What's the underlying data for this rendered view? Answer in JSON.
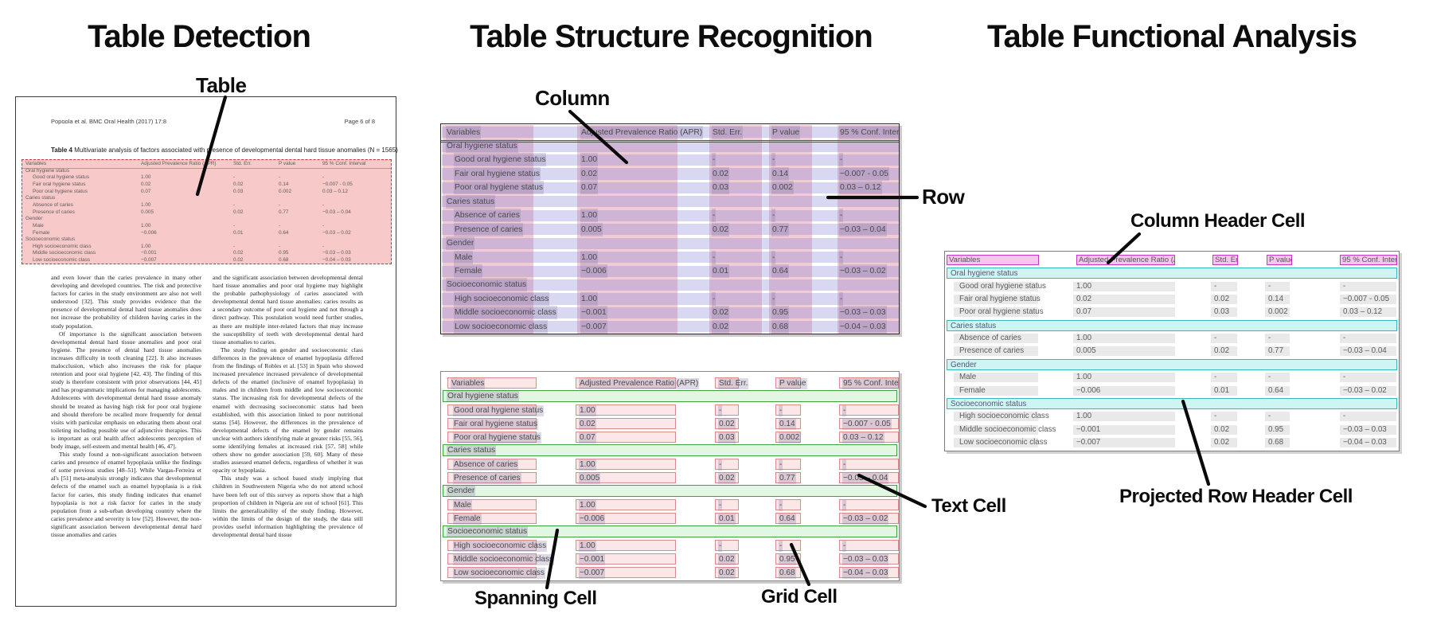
{
  "panels": {
    "detection": {
      "title": "Table Detection",
      "callout_table": "Table"
    },
    "structure": {
      "title": "Table Structure Recognition",
      "callout_column": "Column",
      "callout_row": "Row",
      "callout_spanning": "Spanning Cell",
      "callout_grid": "Grid Cell",
      "callout_text": "Text Cell"
    },
    "functional": {
      "title": "Table Functional Analysis",
      "callout_column_header": "Column Header Cell",
      "callout_projected": "Projected Row Header Cell"
    }
  },
  "document": {
    "header_left": "Popoola et al. BMC Oral Health  (2017) 17:8",
    "header_right": "Page 6 of 8",
    "caption_label": "Table 4",
    "caption_text": " Multivariate analysis of factors associated with presence of developmental dental hard tissue anomalies (N = 1565)",
    "body_left": [
      "and even lower than the caries prevalence in many other developing and developed countries. The risk and protective factors for caries in the study environment are also not well understood [32]. This study provides evidence that the presence of developmental dental hard tissue anomalies does not increase the probability of children having caries in the study population.",
      "Of importance is the significant association between developmental dental hard tissue anomalies and poor oral hygiene. The presence of dental hard tissue anomalies increases difficulty in tooth cleaning [22]. It also increases malocclusion, which also increases the risk for plaque retention and poor oral hygiene [42, 43]. The finding of this study is therefore consistent with prior observations [44, 45] and has programmatic implications for managing adolescents. Adolescents with developmental dental hard tissue anomaly should be treated as having high risk for poor oral hygiene and should therefore be recalled more frequently for dental visits with particular emphasis on educating them about oral toileting including possible use of adjunctive therapies. This is important as oral health affect adolescents perception of body image, self-esteem and mental health [46, 47].",
      "This study found a non-significant association between caries and presence of enamel hypoplasia unlike the findings of some previous studies [48–51]. While Vargas-Ferreira et al's [51] meta-analysis strongly indicates that developmental defects of the enamel such as enamel hypoplasia is a risk factor for caries, this study finding indicates that enamel hypoplasia is not a risk factor for caries in the study population from a sub-urban developing country where the caries prevalence and severity is low [52]. However, the non-significant association between developmental dental hard tissue anomalies and caries"
    ],
    "body_right": [
      "and the significant association between developmental dental hard tissue anomalies and poor oral hygiene may highlight the probable pathophysiology of caries associated with developmental dental hard tissue anomalies: caries results as a secondary outcome of poor oral hygiene and not through a direct pathway. This postulation would need further studies, as there are multiple inter-related factors that may increase the susceptibility of teeth with developmental dental hard tissue anomalies to caries.",
      "The study finding on gender and socioeconomic class differences in the prevalence of enamel hypoplasia differed from the findings of Robles et al. [53] in Spain who showed increased prevalence increased prevalence of developmental defects of the enamel (inclusive of enamel hypoplasia) in males and in children from middle and low socioeconomic status. The increasing risk for developmental defects of the enamel with decreasing socioeconomic status had been established, with this association linked to poor nutritional status [54]. However, the differences in the prevalence of developmental defects of the enamel by gender remains unclear with authors identifying male at greater risks [55, 56], some identifying females at increased risk [57, 58] while others show no gender association [59, 60]. Many of these studies assessed enamel defects, regardless of whether it was opacity or hypoplasia.",
      "This study was a school based study implying that children in Southwestern Nigeria who do not attend school have been left out of this survey as reports show that a high proportion of children in Nigeria are out of school [61]. This limits the generalizability of the study finding. However, within the limits of the design of the study, the data still provides useful information highlighting the prevalence of developmental dental hard tissue"
    ]
  },
  "table": {
    "columns": [
      "Variables",
      "Adjusted Prevalence Ratio (APR)",
      "Std. Err.",
      "P value",
      "95 % Conf. Interval"
    ],
    "rows": [
      {
        "label": "Oral hygiene status",
        "type": "section"
      },
      {
        "label": "Good oral hygiene status",
        "type": "data",
        "values": [
          "1.00",
          "-",
          "-",
          "-"
        ]
      },
      {
        "label": "Fair oral hygiene status",
        "type": "data",
        "values": [
          "0.02",
          "0.02",
          "0.14",
          "−0.007 - 0.05"
        ]
      },
      {
        "label": "Poor oral hygiene status",
        "type": "data",
        "values": [
          "0.07",
          "0.03",
          "0.002",
          "0.03 – 0.12"
        ]
      },
      {
        "label": "Caries status",
        "type": "section"
      },
      {
        "label": "Absence of caries",
        "type": "data",
        "values": [
          "1.00",
          "-",
          "-",
          "-"
        ]
      },
      {
        "label": "Presence of caries",
        "type": "data",
        "values": [
          "0.005",
          "0.02",
          "0.77",
          "−0.03 – 0.04"
        ]
      },
      {
        "label": "Gender",
        "type": "section"
      },
      {
        "label": "Male",
        "type": "data",
        "values": [
          "1.00",
          "-",
          "-",
          "-"
        ]
      },
      {
        "label": "Female",
        "type": "data",
        "values": [
          "−0.006",
          "0.01",
          "0.64",
          "−0.03 – 0.02"
        ]
      },
      {
        "label": "Socioeconomic status",
        "type": "section"
      },
      {
        "label": "High socioeconomic class",
        "type": "data",
        "values": [
          "1.00",
          "-",
          "-",
          "-"
        ]
      },
      {
        "label": "Middle socioeconomic class",
        "type": "data",
        "values": [
          "−0.001",
          "0.02",
          "0.95",
          "−0.03 – 0.03"
        ]
      },
      {
        "label": "Low socioeconomic class",
        "type": "data",
        "values": [
          "−0.007",
          "0.02",
          "0.68",
          "−0.04 – 0.03"
        ]
      }
    ]
  },
  "colors": {
    "detection_fill": "#f8c9c9",
    "detection_border": "#cc3333",
    "row_band": "rgba(125,125,216,0.30)",
    "column_band": "rgba(214,95,122,0.32)",
    "grid_cell_border": "#d98c8c",
    "grid_cell_fill": "#fbe7e7",
    "spanning_border": "#3fa23f",
    "spanning_fill": "#e1f7e1",
    "column_header_border": "#c23cc2",
    "column_header_fill": "#f7c4ef",
    "projected_border": "#35b8b8",
    "projected_fill": "#cff4f4",
    "value_bar_fill": "#e9e9e9",
    "text_highlight": "rgba(138,118,165,0.28)"
  }
}
